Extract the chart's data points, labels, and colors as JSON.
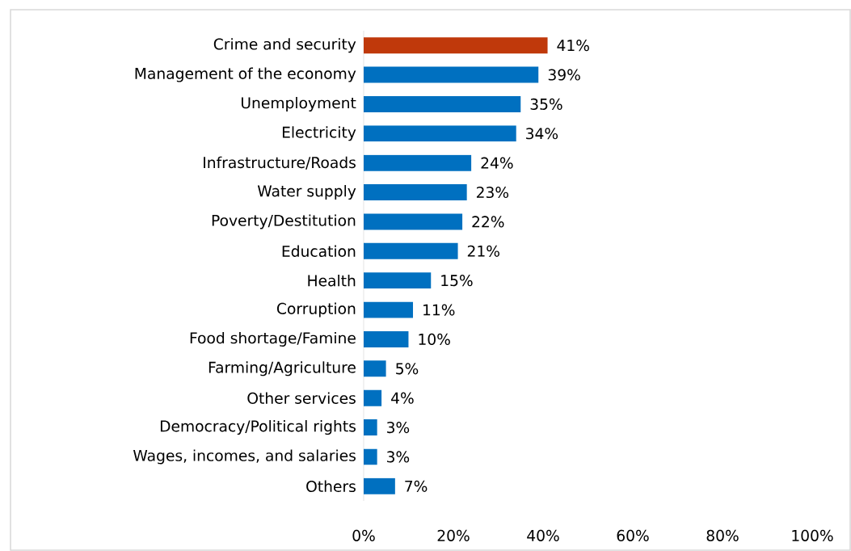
{
  "chart_data": {
    "type": "bar",
    "orientation": "horizontal",
    "categories": [
      "Crime and security",
      "Management of the economy",
      "Unemployment",
      "Electricity",
      "Infrastructure/Roads",
      "Water supply",
      "Poverty/Destitution",
      "Education",
      "Health",
      "Corruption",
      "Food shortage/Famine",
      "Farming/Agriculture",
      "Other services",
      "Democracy/Political rights",
      "Wages, incomes, and salaries",
      "Others"
    ],
    "values": [
      41,
      39,
      35,
      34,
      24,
      23,
      22,
      21,
      15,
      11,
      10,
      5,
      4,
      3,
      3,
      7
    ],
    "value_labels": [
      "41%",
      "39%",
      "35%",
      "34%",
      "24%",
      "23%",
      "22%",
      "21%",
      "15%",
      "11%",
      "10%",
      "5%",
      "4%",
      "3%",
      "3%",
      "7%"
    ],
    "colors": [
      "#c0390b",
      "#0070c0",
      "#0070c0",
      "#0070c0",
      "#0070c0",
      "#0070c0",
      "#0070c0",
      "#0070c0",
      "#0070c0",
      "#0070c0",
      "#0070c0",
      "#0070c0",
      "#0070c0",
      "#0070c0",
      "#0070c0",
      "#0070c0"
    ],
    "xlim": [
      0,
      100
    ],
    "xticks": [
      {
        "value": 0,
        "label": "0%"
      },
      {
        "value": 20,
        "label": "20%"
      },
      {
        "value": 40,
        "label": "40%"
      },
      {
        "value": 60,
        "label": "60%"
      },
      {
        "value": 80,
        "label": "80%"
      },
      {
        "value": 100,
        "label": "100%"
      }
    ]
  }
}
